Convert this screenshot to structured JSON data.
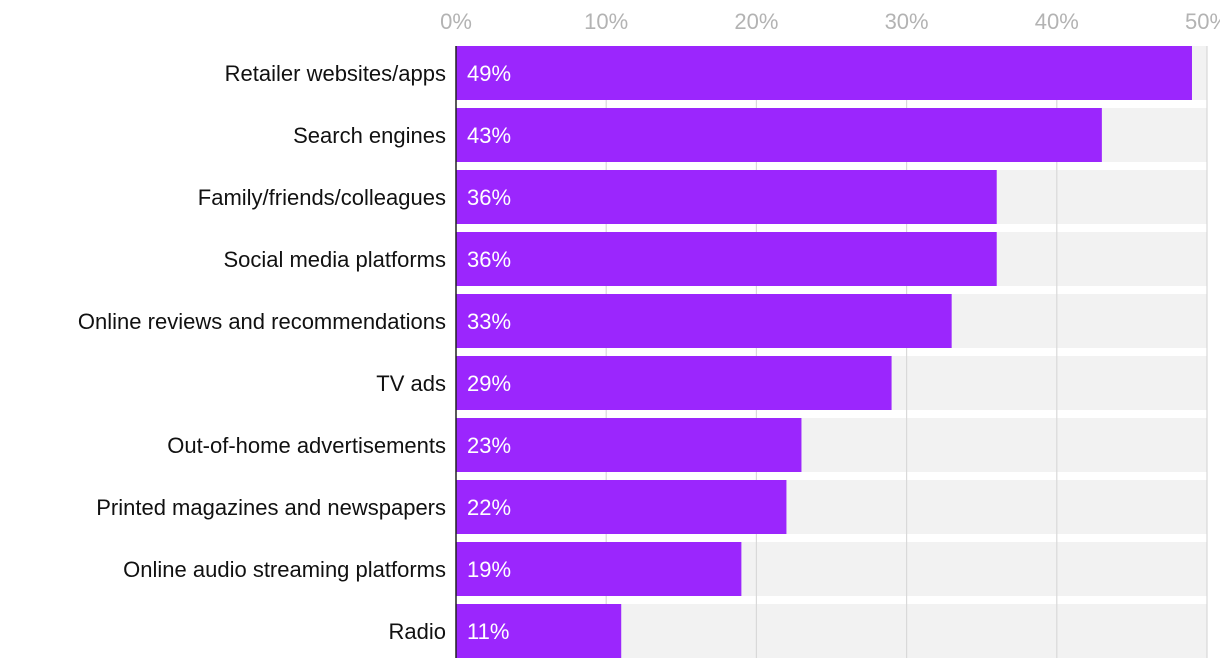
{
  "chart_data": {
    "type": "bar",
    "orientation": "horizontal",
    "title": "",
    "xlabel": "",
    "ylabel": "",
    "xlim": [
      0,
      50
    ],
    "x_ticks": [
      0,
      10,
      20,
      30,
      40,
      50
    ],
    "x_tick_labels": [
      "0%",
      "10%",
      "20%",
      "30%",
      "40%",
      "50%"
    ],
    "grid": true,
    "legend": "none",
    "categories": [
      "Retailer websites/apps",
      "Search engines",
      "Family/friends/colleagues",
      "Social media platforms",
      "Online reviews and recommendations",
      "TV ads",
      "Out-of-home advertisements",
      "Printed magazines and newspapers",
      "Online audio streaming platforms",
      "Radio"
    ],
    "values": [
      49,
      43,
      36,
      36,
      33,
      29,
      23,
      22,
      19,
      11
    ],
    "value_labels": [
      "49%",
      "43%",
      "36%",
      "36%",
      "33%",
      "29%",
      "23%",
      "22%",
      "19%",
      "11%"
    ],
    "colors": {
      "bar": "#9b26fd",
      "track": "#f2f2f2",
      "gridline": "#d9d9d9",
      "axis_line": "#222222",
      "tick_text": "#b3b3b3",
      "category_text": "#111111",
      "value_text": "#ffffff"
    }
  }
}
